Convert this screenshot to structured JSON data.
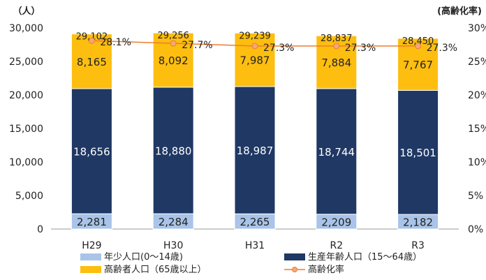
{
  "chart_data": {
    "type": "bar",
    "stacked": true,
    "categories": [
      "H29",
      "H30",
      "H31",
      "R2",
      "R3"
    ],
    "series": [
      {
        "name": "年少人口(0～14歳)",
        "values": [
          2281,
          2284,
          2265,
          2209,
          2182
        ],
        "color": "#a9c4e8",
        "label_color": "#222222"
      },
      {
        "name": "生産年齢人口（15～64歳）",
        "values": [
          18656,
          18880,
          18987,
          18744,
          18501
        ],
        "color": "#1f3864",
        "label_color": "#ffffff"
      },
      {
        "name": "高齢者人口（65歳以上）",
        "values": [
          8165,
          8092,
          7987,
          7884,
          7767
        ],
        "color": "#fdbe10",
        "label_color": "#222222"
      }
    ],
    "totals": [
      "29,102",
      "29,256",
      "29,239",
      "28,837",
      "28,450"
    ],
    "line_series": {
      "name": "高齢化率",
      "values": [
        28.1,
        27.7,
        27.3,
        27.3,
        27.3
      ],
      "color": "#ed7d31"
    },
    "ylabel": "（人）",
    "y2label": "(高齢化率)",
    "ylim": [
      0,
      30000
    ],
    "y2lim": [
      0,
      30
    ],
    "yticks": [
      "0",
      "5,000",
      "10,000",
      "15,000",
      "20,000",
      "25,000",
      "30,000"
    ],
    "y2ticks": [
      "0%",
      "5%",
      "10%",
      "15%",
      "20%",
      "25%",
      "30%"
    ],
    "grid": false,
    "legend_position": "bottom"
  }
}
